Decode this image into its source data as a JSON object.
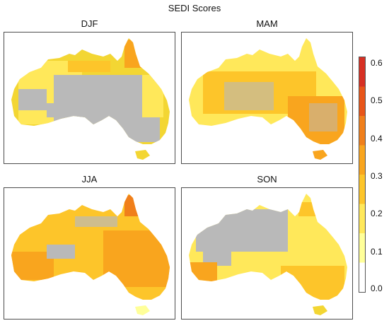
{
  "title": "SEDI Scores",
  "panels": [
    {
      "label": "DJF"
    },
    {
      "label": "MAM"
    },
    {
      "label": "JJA"
    },
    {
      "label": "SON"
    }
  ],
  "colorbar": {
    "ticks": [
      "0.0",
      "0.1",
      "0.2",
      "0.3",
      "0.4",
      "0.5",
      "0.6"
    ],
    "range": [
      0,
      0.6
    ],
    "colors": [
      "#ffffff",
      "#ffff99",
      "#ffe85a",
      "#fdc52a",
      "#f9a51e",
      "#f07f1b",
      "#e85519",
      "#d73023"
    ]
  },
  "no_data_color": "#b9b9b9"
}
